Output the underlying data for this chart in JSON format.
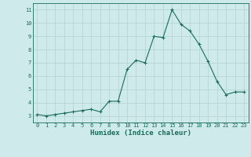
{
  "x": [
    0,
    1,
    2,
    3,
    4,
    5,
    6,
    7,
    8,
    9,
    10,
    11,
    12,
    13,
    14,
    15,
    16,
    17,
    18,
    19,
    20,
    21,
    22,
    23
  ],
  "y": [
    3.1,
    3.0,
    3.1,
    3.2,
    3.3,
    3.4,
    3.5,
    3.3,
    4.1,
    4.1,
    6.5,
    7.2,
    7.0,
    9.0,
    8.9,
    11.0,
    9.9,
    9.4,
    8.4,
    7.1,
    5.6,
    4.6,
    4.8,
    4.8
  ],
  "xlim": [
    -0.5,
    23.5
  ],
  "ylim": [
    2.5,
    11.5
  ],
  "yticks": [
    3,
    4,
    5,
    6,
    7,
    8,
    9,
    10,
    11
  ],
  "xticks": [
    0,
    1,
    2,
    3,
    4,
    5,
    6,
    7,
    8,
    9,
    10,
    11,
    12,
    13,
    14,
    15,
    16,
    17,
    18,
    19,
    20,
    21,
    22,
    23
  ],
  "xlabel": "Humidex (Indice chaleur)",
  "line_color": "#1a6b5a",
  "marker": "+",
  "marker_size": 3.5,
  "bg_color": "#ceeaea",
  "grid_color": "#b8d5d5",
  "tick_color": "#1a6b5a",
  "label_color": "#1a6b5a",
  "font_family": "monospace",
  "tick_fontsize": 5.0,
  "xlabel_fontsize": 6.5
}
